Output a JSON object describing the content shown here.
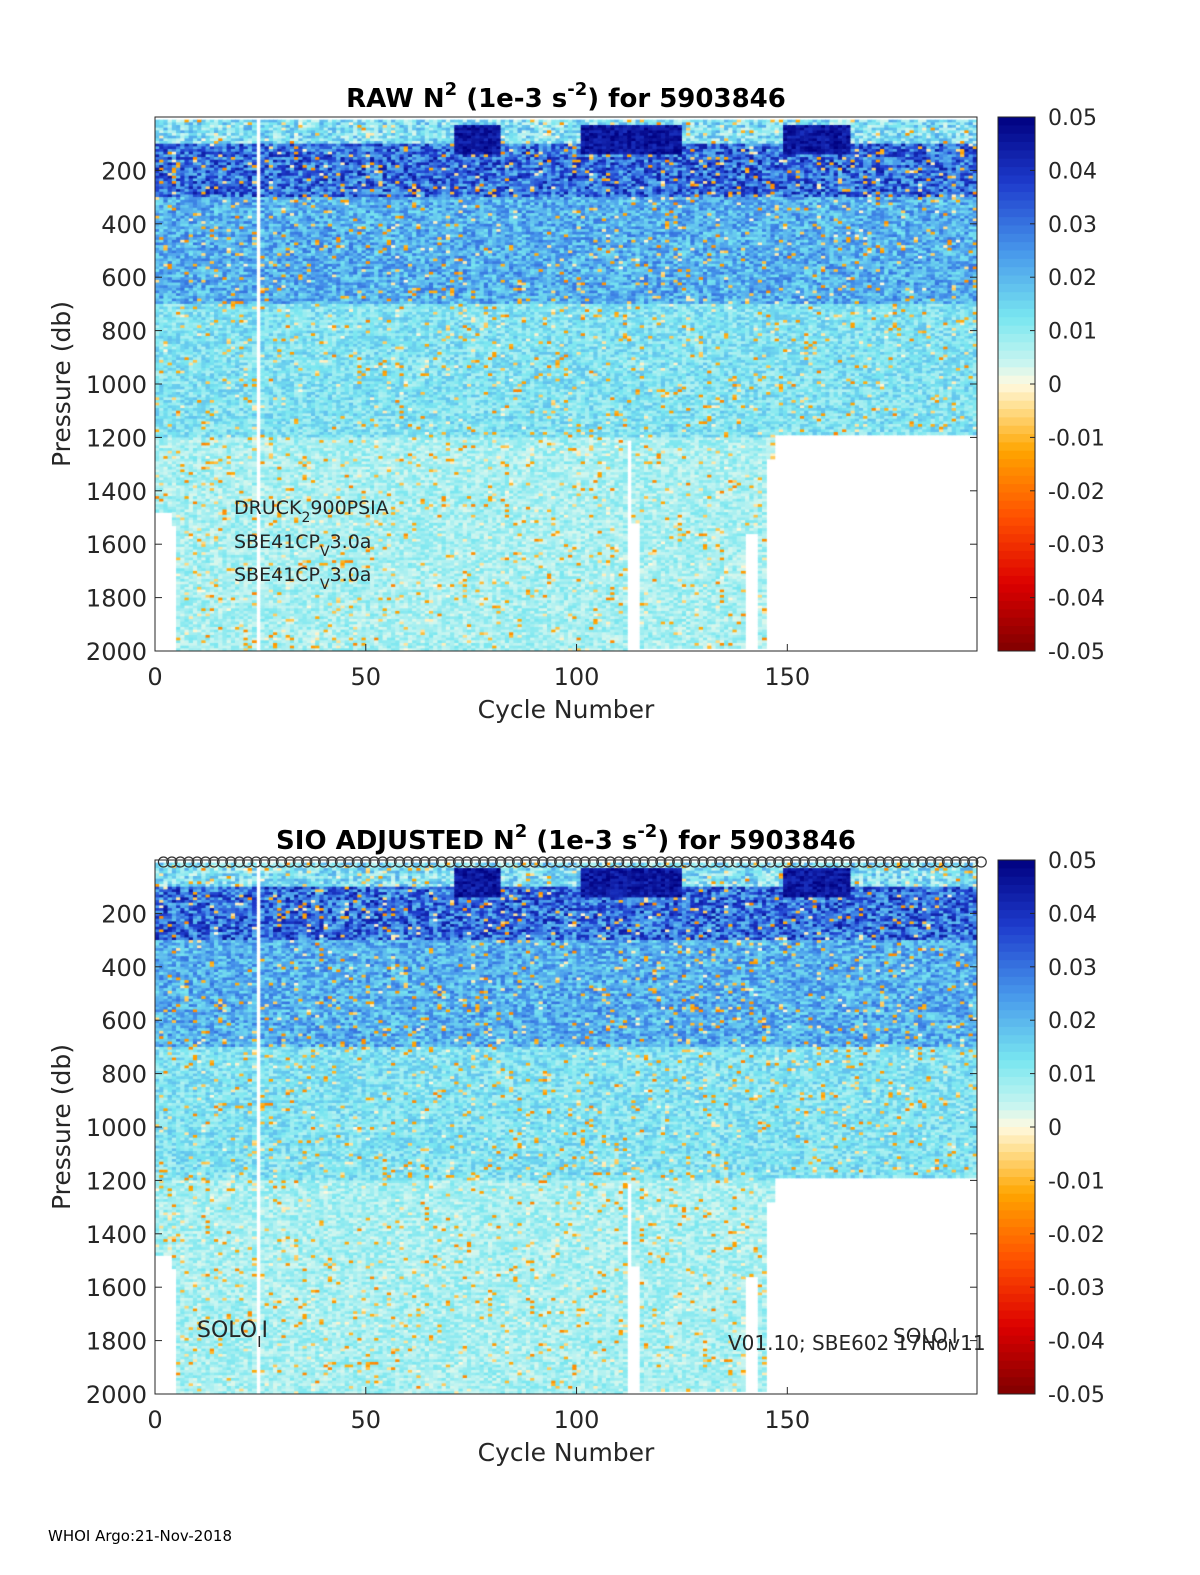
{
  "footer": "WHOI Argo:21-Nov-2018",
  "chart_data": [
    {
      "type": "heatmap",
      "title_main": "RAW N",
      "title_sup": "2",
      "title_mid": " (1e-3 s",
      "title_sup2": "-2",
      "title_end": ") for 5903846",
      "xlabel": "Cycle Number",
      "ylabel": "Pressure (db)",
      "xlim": [
        0,
        195
      ],
      "ylim": [
        2000,
        0
      ],
      "xticks": [
        0,
        50,
        100,
        150
      ],
      "yticks": [
        200,
        400,
        600,
        800,
        1000,
        1200,
        1400,
        1600,
        1800,
        2000
      ],
      "colorbar": {
        "colormap": "jet-like diverging",
        "clim": [
          -0.05,
          0.05
        ],
        "ticks": [
          "0.05",
          "0.04",
          "0.03",
          "0.02",
          "0.01",
          "0",
          "-0.01",
          "-0.02",
          "-0.03",
          "-0.04",
          "-0.05"
        ]
      },
      "annotations": [
        {
          "text": "DRUCK",
          "sub": "2",
          "rest": "900PSIA"
        },
        {
          "text": "SBE41CP",
          "sub": "V",
          "rest": "3.0a"
        },
        {
          "text": "SBE41CP",
          "sub": "V",
          "rest": "3.0a"
        }
      ],
      "gaps_cycles": [
        24
      ],
      "max_pressure_profile": [
        {
          "from": 0,
          "to": 4,
          "p": 1480
        },
        {
          "from": 4,
          "to": 5,
          "p": 1530
        },
        {
          "from": 5,
          "to": 85,
          "p": 2000
        },
        {
          "from": 85,
          "to": 112,
          "p": 2010
        },
        {
          "from": 112,
          "to": 113,
          "p": 1210
        },
        {
          "from": 113,
          "to": 115,
          "p": 1520
        },
        {
          "from": 115,
          "to": 140,
          "p": 1990
        },
        {
          "from": 140,
          "to": 143,
          "p": 1560
        },
        {
          "from": 143,
          "to": 145,
          "p": 1990
        },
        {
          "from": 145,
          "to": 147,
          "p": 1280
        },
        {
          "from": 147,
          "to": 195,
          "p": 1190
        }
      ]
    },
    {
      "type": "heatmap",
      "title_main": "SIO  ADJUSTED N",
      "title_sup": "2",
      "title_mid": " (1e-3 s",
      "title_sup2": "-2",
      "title_end": ") for 5903846",
      "xlabel": "Cycle Number",
      "ylabel": "Pressure (db)",
      "xlim": [
        0,
        195
      ],
      "ylim": [
        2000,
        0
      ],
      "xticks": [
        0,
        50,
        100,
        150
      ],
      "yticks": [
        200,
        400,
        600,
        800,
        1000,
        1200,
        1400,
        1600,
        1800,
        2000
      ],
      "colorbar": {
        "colormap": "jet-like diverging",
        "clim": [
          -0.05,
          0.05
        ],
        "ticks": [
          "0.05",
          "0.04",
          "0.03",
          "0.02",
          "0.01",
          "0",
          "-0.01",
          "-0.02",
          "-0.03",
          "-0.04",
          "-0.05"
        ]
      },
      "qc_markers": "one open circle per cycle along the top edge",
      "annotations_left": {
        "text": "SOLO",
        "sub": "I",
        "rest": "I"
      },
      "annotations_right_top": {
        "text": "SOLO",
        "sub": "I",
        "rest": "I"
      },
      "annotations_right": "V01.10; SBE602 17Nov11"
    }
  ]
}
